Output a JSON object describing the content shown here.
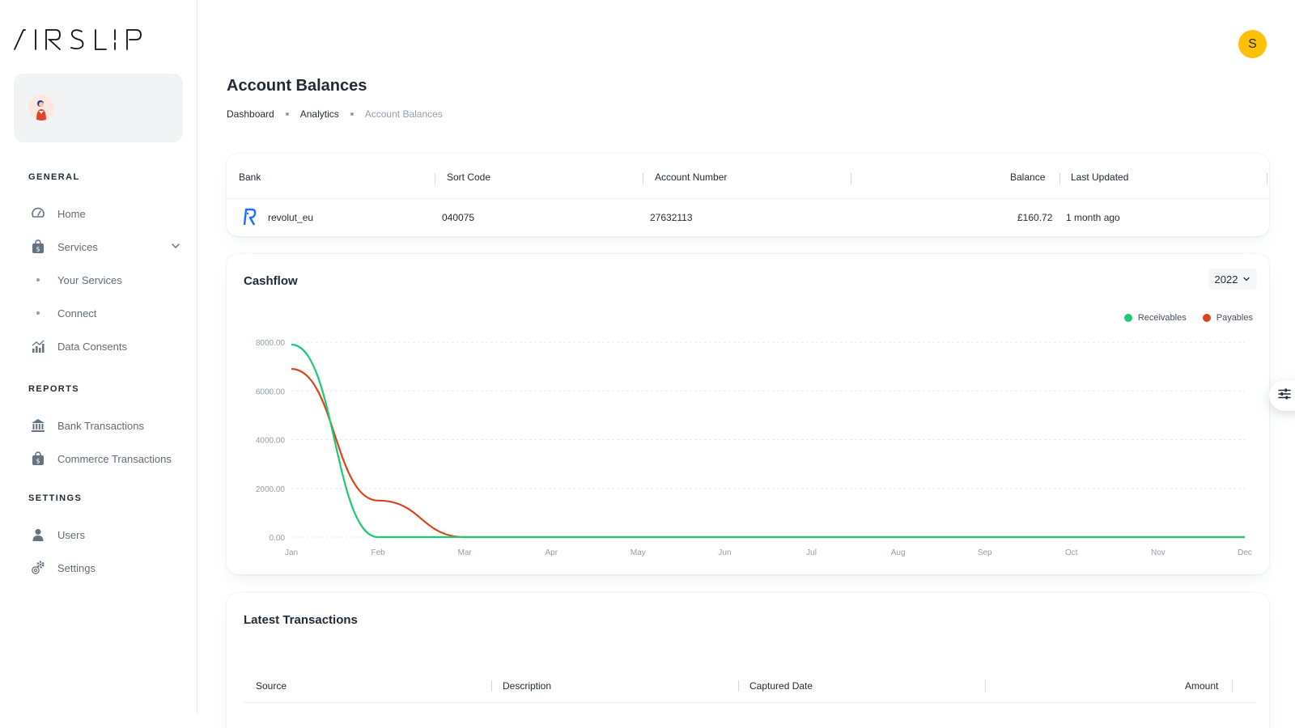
{
  "brand": {
    "logo_text": "AIRSLIP"
  },
  "sidebar": {
    "sections": [
      {
        "title": "GENERAL"
      },
      {
        "title": "REPORTS"
      },
      {
        "title": "SETTINGS"
      }
    ],
    "items": {
      "home": "Home",
      "services": "Services",
      "your_services": "Your Services",
      "connect": "Connect",
      "data_consents": "Data Consents",
      "bank_transactions": "Bank Transactions",
      "commerce_transactions": "Commerce Transactions",
      "users": "Users",
      "settings": "Settings"
    }
  },
  "header": {
    "user_initial": "S",
    "avatar_color": "#ffc107"
  },
  "page": {
    "title": "Account Balances",
    "breadcrumb": [
      "Dashboard",
      "Analytics",
      "Account Balances"
    ]
  },
  "balances": {
    "columns": [
      "Bank",
      "Sort Code",
      "Account Number",
      "Balance",
      "Last Updated"
    ],
    "rows": [
      {
        "bank": "revolut_eu",
        "sort_code": "040075",
        "account_number": "27632113",
        "balance": "£160.72",
        "last_updated": "1 month ago"
      }
    ]
  },
  "cashflow": {
    "title": "Cashflow",
    "year": "2022",
    "receivables_color": "#20c974",
    "payables_color": "#d9441b"
  },
  "chart_data": {
    "type": "line",
    "title": "Cashflow",
    "categories": [
      "Jan",
      "Feb",
      "Mar",
      "Apr",
      "May",
      "Jun",
      "Jul",
      "Aug",
      "Sep",
      "Oct",
      "Nov",
      "Dec"
    ],
    "series": [
      {
        "name": "Receivables",
        "values": [
          7900,
          0,
          0,
          0,
          0,
          0,
          0,
          0,
          0,
          0,
          0,
          0
        ]
      },
      {
        "name": "Payables",
        "values": [
          6900,
          1500,
          0,
          0,
          0,
          0,
          0,
          0,
          0,
          0,
          0,
          0
        ]
      }
    ],
    "y_ticks": [
      "0.00",
      "2000.00",
      "4000.00",
      "6000.00",
      "8000.00"
    ],
    "ylim": [
      0,
      8000
    ],
    "grid": true,
    "legend": "top-right"
  },
  "transactions": {
    "title": "Latest Transactions",
    "columns": [
      "Source",
      "Description",
      "Captured Date",
      "Amount"
    ]
  }
}
